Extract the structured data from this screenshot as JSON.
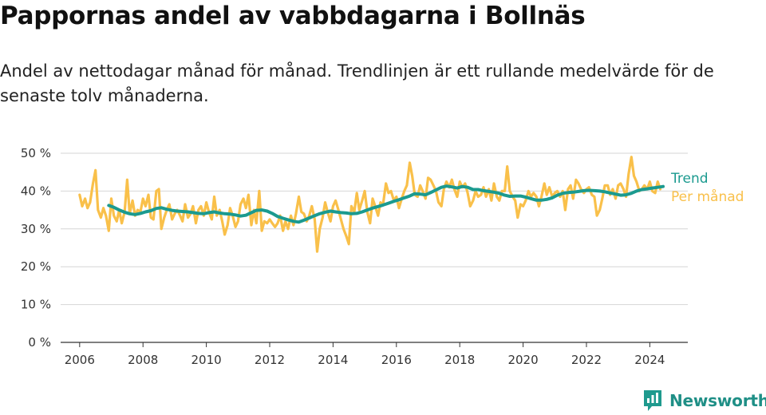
{
  "header": {
    "title": "Pappornas andel av vabbdagarna i Bollnäs",
    "subtitle": "Andel av nettodagar månad för månad. Trendlinjen är ett rullande medelvärde för de senaste tolv månaderna."
  },
  "brand": {
    "name": "Newsworthy",
    "color": "#1f9a8e"
  },
  "chart_data": {
    "type": "line",
    "title": "Pappornas andel av vabbdagarna i Bollnäs",
    "subtitle": "Andel av nettodagar månad för månad. Trendlinjen är ett rullande medelvärde för de senaste tolv månaderna.",
    "xlabel": "",
    "ylabel": "",
    "xlim": [
      2005.4,
      2025.2
    ],
    "ylim": [
      0,
      50
    ],
    "y_ticks": [
      "0 %",
      "10 %",
      "20 %",
      "30 %",
      "40 %",
      "50 %"
    ],
    "y_tick_values": [
      0,
      10,
      20,
      30,
      40,
      50
    ],
    "x_ticks": [
      "2006",
      "2008",
      "2010",
      "2012",
      "2014",
      "2016",
      "2018",
      "2020",
      "2022",
      "2024"
    ],
    "x_tick_values": [
      2006,
      2008,
      2010,
      2012,
      2014,
      2016,
      2018,
      2020,
      2022,
      2024
    ],
    "grid": "horizontal",
    "legend": "right",
    "series": [
      {
        "name": "Per månad",
        "color": "#f9c04a",
        "x": [
          2006.0,
          2006.08,
          2006.17,
          2006.25,
          2006.33,
          2006.42,
          2006.5,
          2006.58,
          2006.67,
          2006.75,
          2006.83,
          2006.92,
          2007.0,
          2007.08,
          2007.17,
          2007.25,
          2007.33,
          2007.42,
          2007.5,
          2007.58,
          2007.67,
          2007.75,
          2007.83,
          2007.92,
          2008.0,
          2008.08,
          2008.17,
          2008.25,
          2008.33,
          2008.42,
          2008.5,
          2008.58,
          2008.67,
          2008.75,
          2008.83,
          2008.92,
          2009.0,
          2009.08,
          2009.17,
          2009.25,
          2009.33,
          2009.42,
          2009.5,
          2009.58,
          2009.67,
          2009.75,
          2009.83,
          2009.92,
          2010.0,
          2010.08,
          2010.17,
          2010.25,
          2010.33,
          2010.42,
          2010.5,
          2010.58,
          2010.67,
          2010.75,
          2010.83,
          2010.92,
          2011.0,
          2011.08,
          2011.17,
          2011.25,
          2011.33,
          2011.42,
          2011.5,
          2011.58,
          2011.67,
          2011.75,
          2011.83,
          2011.92,
          2012.0,
          2012.08,
          2012.17,
          2012.25,
          2012.33,
          2012.42,
          2012.5,
          2012.58,
          2012.67,
          2012.75,
          2012.83,
          2012.92,
          2013.0,
          2013.08,
          2013.17,
          2013.25,
          2013.33,
          2013.42,
          2013.5,
          2013.58,
          2013.67,
          2013.75,
          2013.83,
          2013.92,
          2014.0,
          2014.08,
          2014.17,
          2014.25,
          2014.33,
          2014.42,
          2014.5,
          2014.58,
          2014.67,
          2014.75,
          2014.83,
          2014.92,
          2015.0,
          2015.08,
          2015.17,
          2015.25,
          2015.33,
          2015.42,
          2015.5,
          2015.58,
          2015.67,
          2015.75,
          2015.83,
          2015.92,
          2016.0,
          2016.08,
          2016.17,
          2016.25,
          2016.33,
          2016.42,
          2016.5,
          2016.58,
          2016.67,
          2016.75,
          2016.83,
          2016.92,
          2017.0,
          2017.08,
          2017.17,
          2017.25,
          2017.33,
          2017.42,
          2017.5,
          2017.58,
          2017.67,
          2017.75,
          2017.83,
          2017.92,
          2018.0,
          2018.08,
          2018.17,
          2018.25,
          2018.33,
          2018.42,
          2018.5,
          2018.58,
          2018.67,
          2018.75,
          2018.83,
          2018.92,
          2019.0,
          2019.08,
          2019.17,
          2019.25,
          2019.33,
          2019.42,
          2019.5,
          2019.58,
          2019.67,
          2019.75,
          2019.83,
          2019.92,
          2020.0,
          2020.08,
          2020.17,
          2020.25,
          2020.33,
          2020.42,
          2020.5,
          2020.58,
          2020.67,
          2020.75,
          2020.83,
          2020.92,
          2021.0,
          2021.08,
          2021.17,
          2021.25,
          2021.33,
          2021.42,
          2021.5,
          2021.58,
          2021.67,
          2021.75,
          2021.83,
          2021.92,
          2022.0,
          2022.08,
          2022.17,
          2022.25,
          2022.33,
          2022.42,
          2022.5,
          2022.58,
          2022.67,
          2022.75,
          2022.83,
          2022.92,
          2023.0,
          2023.08,
          2023.17,
          2023.25,
          2023.33,
          2023.42,
          2023.5,
          2023.58,
          2023.67,
          2023.75,
          2023.83,
          2023.92,
          2024.0,
          2024.08,
          2024.17,
          2024.25,
          2024.33
        ],
        "values": [
          39,
          36,
          38,
          35.5,
          37,
          42,
          45.5,
          35,
          33,
          35.5,
          33.5,
          29.5,
          38,
          33.5,
          32,
          35,
          31.5,
          34.5,
          43,
          34,
          37.5,
          33.5,
          35,
          34.5,
          38,
          36,
          39,
          33,
          32.5,
          40,
          40.5,
          30,
          33,
          35,
          36.5,
          32.5,
          34,
          35,
          33.5,
          32,
          36.5,
          33,
          34,
          36,
          31.5,
          35,
          36,
          33.5,
          37,
          34.5,
          32.5,
          38.5,
          33.5,
          35,
          32,
          28.5,
          31,
          35.5,
          33.5,
          30.5,
          32,
          36.5,
          38,
          35.5,
          39,
          31,
          35,
          31.5,
          40,
          29.5,
          32,
          31.5,
          32.5,
          31.5,
          30.5,
          31.5,
          33.5,
          29.5,
          32,
          30,
          33.5,
          31,
          34,
          38.5,
          34.5,
          34,
          32,
          33.5,
          36,
          32.5,
          24,
          30,
          33,
          37,
          34.5,
          32,
          36,
          37.5,
          35,
          32.5,
          30,
          28,
          26,
          36,
          34.5,
          39.5,
          35,
          37.5,
          40,
          34.5,
          31.5,
          38,
          36,
          33.5,
          37,
          36.5,
          42,
          39.5,
          40,
          37.5,
          38.5,
          35.5,
          38,
          40,
          41.5,
          47.5,
          44,
          39,
          38.5,
          41.5,
          40,
          38,
          43.5,
          43,
          41.5,
          40,
          37,
          36,
          40.5,
          42.5,
          41,
          43,
          40.5,
          38.5,
          42.5,
          41,
          42,
          39.5,
          36,
          37.5,
          40,
          38.5,
          39,
          41,
          38.5,
          40.5,
          37.5,
          42,
          38.5,
          37.5,
          40,
          40,
          46.5,
          40,
          38.5,
          37.5,
          33,
          36.5,
          36,
          37.5,
          40,
          38.5,
          39.5,
          38.5,
          36,
          38.5,
          42,
          39,
          41,
          38.5,
          39.5,
          40,
          38.5,
          40,
          35,
          40.5,
          41.5,
          38,
          43,
          42,
          40.5,
          39.5,
          40.5,
          41,
          39,
          38.5,
          33.5,
          35,
          38,
          41.5,
          41.5,
          39,
          40.5,
          38,
          41.5,
          42,
          40.5,
          38.5,
          44.5,
          49,
          44,
          42.5,
          40,
          40.5,
          41.5,
          40.5,
          42.5,
          40,
          39.5,
          42.5,
          40.5
        ]
      },
      {
        "name": "Trend",
        "color": "#1b9a8f",
        "x": [
          2006.92,
          2007.08,
          2007.25,
          2007.42,
          2007.58,
          2007.75,
          2007.92,
          2008.08,
          2008.25,
          2008.42,
          2008.58,
          2008.75,
          2008.92,
          2009.08,
          2009.25,
          2009.42,
          2009.58,
          2009.75,
          2009.92,
          2010.08,
          2010.25,
          2010.42,
          2010.58,
          2010.75,
          2010.92,
          2011.08,
          2011.25,
          2011.42,
          2011.58,
          2011.75,
          2011.92,
          2012.08,
          2012.25,
          2012.42,
          2012.58,
          2012.75,
          2012.92,
          2013.08,
          2013.25,
          2013.42,
          2013.58,
          2013.75,
          2013.92,
          2014.08,
          2014.25,
          2014.42,
          2014.58,
          2014.75,
          2014.92,
          2015.08,
          2015.25,
          2015.42,
          2015.58,
          2015.75,
          2015.92,
          2016.08,
          2016.25,
          2016.42,
          2016.58,
          2016.75,
          2016.92,
          2017.08,
          2017.25,
          2017.42,
          2017.58,
          2017.75,
          2017.92,
          2018.08,
          2018.25,
          2018.42,
          2018.58,
          2018.75,
          2018.92,
          2019.08,
          2019.25,
          2019.42,
          2019.58,
          2019.75,
          2019.92,
          2020.08,
          2020.25,
          2020.42,
          2020.58,
          2020.75,
          2020.92,
          2021.08,
          2021.25,
          2021.42,
          2021.58,
          2021.75,
          2021.92,
          2022.08,
          2022.25,
          2022.42,
          2022.58,
          2022.75,
          2022.92,
          2023.08,
          2023.25,
          2023.42,
          2023.58,
          2023.75,
          2023.92,
          2024.08,
          2024.25,
          2024.42
        ],
        "values": [
          36.2,
          35.7,
          35.0,
          34.4,
          34.0,
          33.8,
          34.1,
          34.5,
          34.8,
          35.4,
          35.6,
          35.2,
          34.9,
          34.7,
          34.6,
          34.5,
          34.3,
          34.1,
          34.0,
          34.3,
          34.5,
          34.2,
          34.0,
          33.9,
          33.7,
          33.4,
          33.6,
          34.3,
          34.9,
          35.0,
          34.7,
          34.1,
          33.3,
          32.8,
          32.4,
          32.0,
          31.8,
          32.3,
          32.9,
          33.5,
          34.0,
          34.4,
          34.7,
          34.5,
          34.3,
          34.2,
          34.0,
          34.1,
          34.5,
          35.0,
          35.5,
          35.9,
          36.3,
          36.8,
          37.3,
          37.7,
          38.2,
          38.7,
          39.3,
          39.2,
          39.0,
          39.6,
          40.3,
          41.0,
          41.3,
          41.1,
          40.8,
          41.2,
          41.0,
          40.4,
          40.4,
          40.1,
          39.9,
          39.7,
          39.4,
          38.9,
          38.6,
          38.7,
          38.7,
          38.4,
          38.0,
          37.6,
          37.6,
          37.8,
          38.2,
          38.9,
          39.4,
          39.6,
          39.7,
          39.9,
          40.1,
          40.2,
          40.1,
          40.0,
          39.8,
          39.5,
          39.2,
          38.9,
          39.0,
          39.4,
          40.0,
          40.4,
          40.6,
          40.8,
          41.0,
          41.2
        ]
      }
    ]
  }
}
